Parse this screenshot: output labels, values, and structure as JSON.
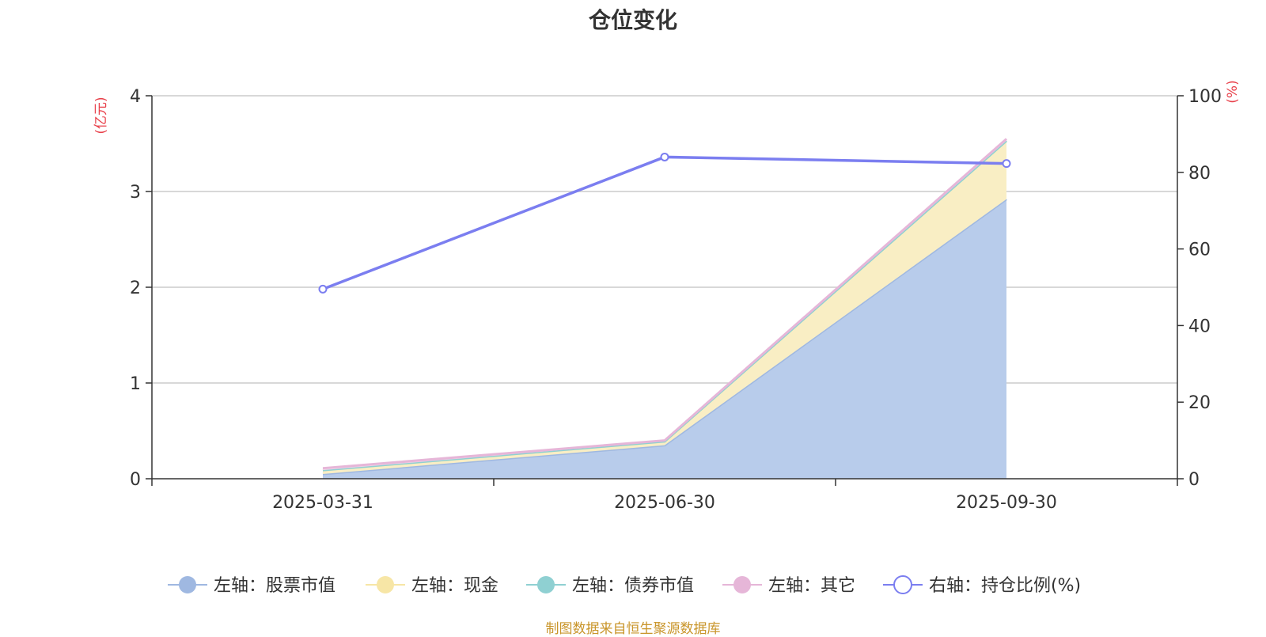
{
  "chart_data": {
    "type": "area",
    "title": "仓位变化",
    "categories": [
      "2025-03-31",
      "2025-06-30",
      "2025-09-30"
    ],
    "y_left": {
      "label": "(亿元)",
      "ticks": [
        0,
        1,
        2,
        3,
        4
      ],
      "range": [
        0,
        4
      ]
    },
    "y_right": {
      "label": "(%)",
      "ticks": [
        0,
        20,
        40,
        60,
        80,
        100
      ],
      "range": [
        0,
        100
      ]
    },
    "series": [
      {
        "name": "左轴：股票市值",
        "axis": "left",
        "stack": true,
        "values": [
          0.05,
          0.35,
          2.92
        ],
        "color": "#9fb8e1",
        "fill": "#b8cceb",
        "marker": "filled"
      },
      {
        "name": "左轴：现金",
        "axis": "left",
        "stack": true,
        "values": [
          0.04,
          0.04,
          0.61
        ],
        "color": "#f7e6a6",
        "fill": "#f9eec4",
        "marker": "filled"
      },
      {
        "name": "左轴：债券市值",
        "axis": "left",
        "stack": true,
        "values": [
          0,
          0,
          0
        ],
        "color": "#8fd0d2",
        "fill": "#bfe5e6",
        "marker": "filled"
      },
      {
        "name": "左轴：其它",
        "axis": "left",
        "stack": true,
        "values": [
          0.02,
          0.01,
          0.02
        ],
        "color": "#e6b6d8",
        "fill": "#f1d4e8",
        "marker": "filled"
      },
      {
        "name": "右轴：持仓比例(%)",
        "axis": "right",
        "stack": false,
        "values": [
          49.5,
          84,
          82.3
        ],
        "color": "#7b7ef0",
        "marker": "hollow"
      }
    ],
    "grid": true,
    "legend_position": "bottom"
  },
  "source_note": "制图数据来自恒生聚源数据库"
}
